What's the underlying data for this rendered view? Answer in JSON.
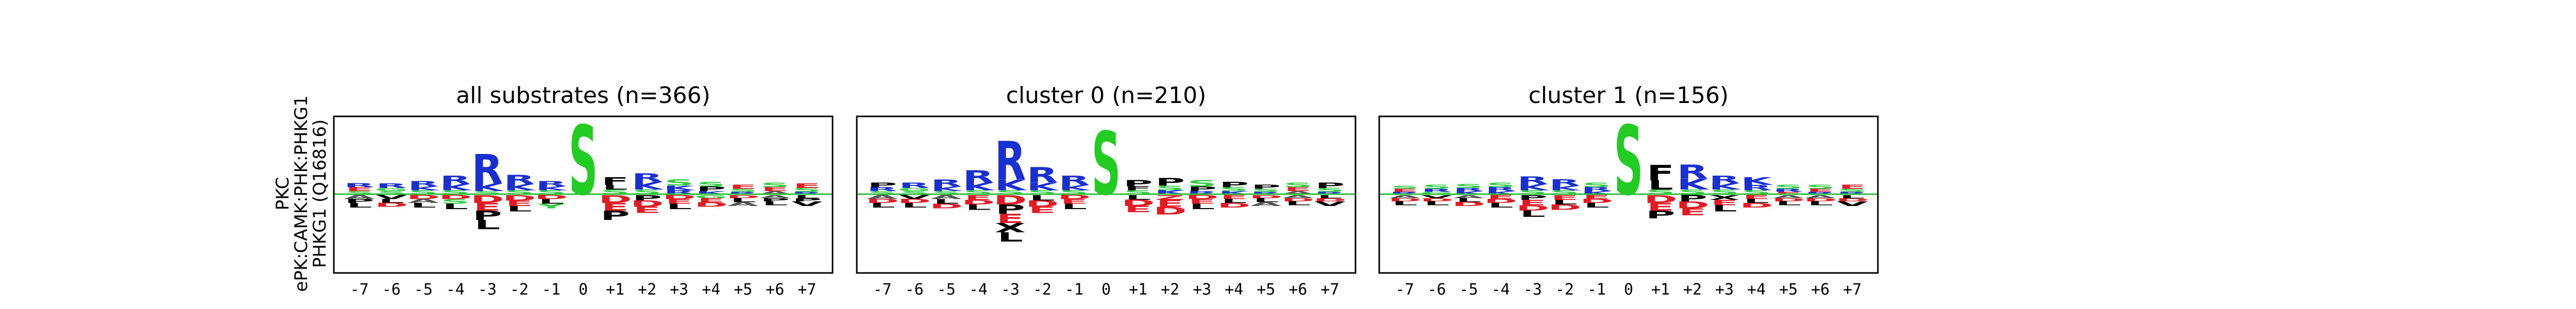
{
  "figure": {
    "row_labels": [
      "PKC",
      "ePK:CAMK:PHK:PHKG1",
      "PHKG1 (Q16816)"
    ]
  },
  "colors": {
    "basic": "#1a2fcf",
    "acidic": "#e01b24",
    "polar": "#2ecc40",
    "hydrophobic": "#000000",
    "neutral": "#9b4dca",
    "hydrophobic_alt": "#555555",
    "center": "#22cc22",
    "baseline": "#2fbf3f"
  },
  "chart_data": [
    {
      "type": "logo",
      "title": "all substrates (n=366)",
      "xlabel": "",
      "ylabel": "",
      "positions": [
        "-7",
        "-6",
        "-5",
        "-4",
        "-3",
        "-2",
        "-1",
        "0",
        "+1",
        "+2",
        "+3",
        "+4",
        "+5",
        "+6",
        "+7"
      ],
      "ylim": [
        -1.0,
        1.0
      ],
      "grid": false,
      "enriched": [
        [
          [
            "E",
            0.05
          ],
          [
            "R",
            0.05
          ],
          [
            "S",
            0.04
          ]
        ],
        [
          [
            "R",
            0.06
          ],
          [
            "S",
            0.04
          ],
          [
            "G",
            0.04
          ]
        ],
        [
          [
            "R",
            0.07
          ],
          [
            "S",
            0.05
          ],
          [
            "K",
            0.05
          ]
        ],
        [
          [
            "R",
            0.11
          ],
          [
            "K",
            0.08
          ],
          [
            "S",
            0.05
          ]
        ],
        [
          [
            "R",
            0.38
          ],
          [
            "K",
            0.1
          ],
          [
            "S",
            0.04
          ]
        ],
        [
          [
            "R",
            0.12
          ],
          [
            "K",
            0.08
          ],
          [
            "S",
            0.05
          ]
        ],
        [
          [
            "R",
            0.07
          ],
          [
            "S",
            0.05
          ],
          [
            "K",
            0.05
          ]
        ],
        [
          [
            "S",
            0.9
          ]
        ],
        [
          [
            "F",
            0.1
          ],
          [
            "S",
            0.06
          ],
          [
            "L",
            0.06
          ]
        ],
        [
          [
            "R",
            0.11
          ],
          [
            "K",
            0.1
          ],
          [
            "S",
            0.06
          ]
        ],
        [
          [
            "S",
            0.08
          ],
          [
            "K",
            0.06
          ],
          [
            "R",
            0.05
          ]
        ],
        [
          [
            "P",
            0.06
          ],
          [
            "S",
            0.06
          ],
          [
            "K",
            0.04
          ]
        ],
        [
          [
            "E",
            0.05
          ],
          [
            "S",
            0.04
          ],
          [
            "R",
            0.03
          ]
        ],
        [
          [
            "S",
            0.06
          ],
          [
            "E",
            0.05
          ],
          [
            "A",
            0.04
          ]
        ],
        [
          [
            "E",
            0.06
          ],
          [
            "S",
            0.05
          ],
          [
            "R",
            0.03
          ]
        ]
      ],
      "depleted": [
        [
          [
            "L",
            0.06
          ],
          [
            "A",
            0.05
          ],
          [
            "P",
            0.05
          ]
        ],
        [
          [
            "V",
            0.05
          ],
          [
            "L",
            0.05
          ],
          [
            "D",
            0.05
          ]
        ],
        [
          [
            "L",
            0.06
          ],
          [
            "D",
            0.05
          ],
          [
            "A",
            0.05
          ]
        ],
        [
          [
            "L",
            0.07
          ],
          [
            "S",
            0.06
          ],
          [
            "D",
            0.05
          ]
        ],
        [
          [
            "D",
            0.1
          ],
          [
            "E",
            0.1
          ],
          [
            "P",
            0.12
          ],
          [
            "L",
            0.12
          ]
        ],
        [
          [
            "D",
            0.07
          ],
          [
            "E",
            0.07
          ],
          [
            "L",
            0.07
          ]
        ],
        [
          [
            "L",
            0.06
          ],
          [
            "Y",
            0.06
          ],
          [
            "D",
            0.05
          ]
        ],
        [],
        [
          [
            "D",
            0.1
          ],
          [
            "E",
            0.1
          ],
          [
            "P",
            0.12
          ]
        ],
        [
          [
            "D",
            0.08
          ],
          [
            "E",
            0.08
          ],
          [
            "P",
            0.07
          ]
        ],
        [
          [
            "L",
            0.07
          ],
          [
            "E",
            0.06
          ],
          [
            "D",
            0.05
          ]
        ],
        [
          [
            "D",
            0.06
          ],
          [
            "E",
            0.05
          ],
          [
            "G",
            0.04
          ]
        ],
        [
          [
            "L",
            0.05
          ],
          [
            "A",
            0.05
          ],
          [
            "D",
            0.04
          ]
        ],
        [
          [
            "L",
            0.05
          ],
          [
            "A",
            0.04
          ],
          [
            "P",
            0.04
          ]
        ],
        [
          [
            "V",
            0.06
          ],
          [
            "L",
            0.04
          ],
          [
            "P",
            0.04
          ]
        ]
      ]
    },
    {
      "type": "logo",
      "title": "cluster 0 (n=210)",
      "xlabel": "",
      "ylabel": "",
      "positions": [
        "-7",
        "-6",
        "-5",
        "-4",
        "-3",
        "-2",
        "-1",
        "0",
        "+1",
        "+2",
        "+3",
        "+4",
        "+5",
        "+6",
        "+7"
      ],
      "ylim": [
        -1.0,
        1.0
      ],
      "grid": false,
      "enriched": [
        [
          [
            "P",
            0.06
          ],
          [
            "R",
            0.05
          ],
          [
            "S",
            0.04
          ]
        ],
        [
          [
            "R",
            0.07
          ],
          [
            "S",
            0.04
          ],
          [
            "G",
            0.04
          ]
        ],
        [
          [
            "R",
            0.09
          ],
          [
            "K",
            0.06
          ],
          [
            "S",
            0.04
          ]
        ],
        [
          [
            "R",
            0.16
          ],
          [
            "K",
            0.1
          ],
          [
            "S",
            0.05
          ]
        ],
        [
          [
            "R",
            0.5
          ],
          [
            "K",
            0.14
          ],
          [
            "S",
            0.05
          ]
        ],
        [
          [
            "R",
            0.2
          ],
          [
            "K",
            0.1
          ],
          [
            "S",
            0.05
          ]
        ],
        [
          [
            "R",
            0.12
          ],
          [
            "K",
            0.07
          ],
          [
            "S",
            0.05
          ]
        ],
        [
          [
            "S",
            0.82
          ]
        ],
        [
          [
            "P",
            0.08
          ],
          [
            "S",
            0.05
          ],
          [
            "F",
            0.05
          ]
        ],
        [
          [
            "P",
            0.1
          ],
          [
            "S",
            0.06
          ],
          [
            "K",
            0.05
          ]
        ],
        [
          [
            "S",
            0.08
          ],
          [
            "P",
            0.06
          ],
          [
            "R",
            0.04
          ]
        ],
        [
          [
            "P",
            0.07
          ],
          [
            "S",
            0.05
          ],
          [
            "K",
            0.04
          ]
        ],
        [
          [
            "P",
            0.05
          ],
          [
            "S",
            0.04
          ],
          [
            "R",
            0.03
          ]
        ],
        [
          [
            "S",
            0.06
          ],
          [
            "E",
            0.05
          ],
          [
            "A",
            0.04
          ]
        ],
        [
          [
            "P",
            0.07
          ],
          [
            "S",
            0.05
          ],
          [
            "R",
            0.03
          ]
        ]
      ],
      "depleted": [
        [
          [
            "L",
            0.06
          ],
          [
            "A",
            0.05
          ],
          [
            "D",
            0.05
          ]
        ],
        [
          [
            "L",
            0.06
          ],
          [
            "V",
            0.05
          ],
          [
            "D",
            0.05
          ]
        ],
        [
          [
            "L",
            0.06
          ],
          [
            "D",
            0.06
          ],
          [
            "A",
            0.05
          ]
        ],
        [
          [
            "L",
            0.07
          ],
          [
            "E",
            0.06
          ],
          [
            "D",
            0.06
          ]
        ],
        [
          [
            "D",
            0.12
          ],
          [
            "P",
            0.12
          ],
          [
            "E",
            0.12
          ],
          [
            "X",
            0.12
          ],
          [
            "L",
            0.12
          ]
        ],
        [
          [
            "D",
            0.08
          ],
          [
            "E",
            0.08
          ],
          [
            "L",
            0.07
          ]
        ],
        [
          [
            "L",
            0.07
          ],
          [
            "E",
            0.06
          ],
          [
            "D",
            0.05
          ]
        ],
        [],
        [
          [
            "D",
            0.08
          ],
          [
            "E",
            0.08
          ],
          [
            "L",
            0.06
          ]
        ],
        [
          [
            "D",
            0.1
          ],
          [
            "E",
            0.09
          ],
          [
            "Z",
            0.06
          ]
        ],
        [
          [
            "L",
            0.07
          ],
          [
            "E",
            0.06
          ],
          [
            "D",
            0.05
          ]
        ],
        [
          [
            "D",
            0.06
          ],
          [
            "E",
            0.05
          ],
          [
            "L",
            0.05
          ]
        ],
        [
          [
            "L",
            0.05
          ],
          [
            "A",
            0.05
          ],
          [
            "D",
            0.04
          ]
        ],
        [
          [
            "L",
            0.05
          ],
          [
            "A",
            0.04
          ],
          [
            "D",
            0.04
          ]
        ],
        [
          [
            "V",
            0.06
          ],
          [
            "L",
            0.04
          ],
          [
            "D",
            0.04
          ]
        ]
      ]
    },
    {
      "type": "logo",
      "title": "cluster 1 (n=156)",
      "xlabel": "",
      "ylabel": "",
      "positions": [
        "-7",
        "-6",
        "-5",
        "-4",
        "-3",
        "-2",
        "-1",
        "0",
        "+1",
        "+2",
        "+3",
        "+4",
        "+5",
        "+6",
        "+7"
      ],
      "ylim": [
        -1.0,
        1.0
      ],
      "grid": false,
      "enriched": [
        [
          [
            "E",
            0.04
          ],
          [
            "S",
            0.04
          ],
          [
            "R",
            0.03
          ]
        ],
        [
          [
            "S",
            0.05
          ],
          [
            "R",
            0.04
          ],
          [
            "G",
            0.03
          ]
        ],
        [
          [
            "S",
            0.05
          ],
          [
            "K",
            0.04
          ],
          [
            "R",
            0.04
          ]
        ],
        [
          [
            "S",
            0.06
          ],
          [
            "R",
            0.05
          ],
          [
            "K",
            0.04
          ]
        ],
        [
          [
            "R",
            0.1
          ],
          [
            "K",
            0.08
          ],
          [
            "S",
            0.05
          ]
        ],
        [
          [
            "R",
            0.08
          ],
          [
            "K",
            0.06
          ],
          [
            "S",
            0.05
          ]
        ],
        [
          [
            "S",
            0.06
          ],
          [
            "R",
            0.05
          ],
          [
            "K",
            0.04
          ]
        ],
        [
          [
            "S",
            0.9
          ]
        ],
        [
          [
            "F",
            0.2
          ],
          [
            "L",
            0.12
          ],
          [
            "S",
            0.06
          ]
        ],
        [
          [
            "R",
            0.18
          ],
          [
            "K",
            0.14
          ],
          [
            "S",
            0.06
          ]
        ],
        [
          [
            "R",
            0.1
          ],
          [
            "K",
            0.08
          ],
          [
            "S",
            0.06
          ]
        ],
        [
          [
            "K",
            0.1
          ],
          [
            "R",
            0.07
          ],
          [
            "S",
            0.05
          ]
        ],
        [
          [
            "S",
            0.05
          ],
          [
            "R",
            0.04
          ],
          [
            "E",
            0.03
          ]
        ],
        [
          [
            "S",
            0.05
          ],
          [
            "E",
            0.04
          ],
          [
            "R",
            0.03
          ]
        ],
        [
          [
            "E",
            0.05
          ],
          [
            "S",
            0.04
          ],
          [
            "R",
            0.03
          ]
        ]
      ],
      "depleted": [
        [
          [
            "L",
            0.05
          ],
          [
            "A",
            0.04
          ],
          [
            "D",
            0.04
          ]
        ],
        [
          [
            "L",
            0.05
          ],
          [
            "V",
            0.04
          ],
          [
            "D",
            0.04
          ]
        ],
        [
          [
            "L",
            0.05
          ],
          [
            "D",
            0.05
          ],
          [
            "A",
            0.04
          ]
        ],
        [
          [
            "L",
            0.06
          ],
          [
            "E",
            0.05
          ],
          [
            "D",
            0.05
          ]
        ],
        [
          [
            "L",
            0.08
          ],
          [
            "E",
            0.07
          ],
          [
            "D",
            0.07
          ],
          [
            "P",
            0.06
          ]
        ],
        [
          [
            "D",
            0.07
          ],
          [
            "E",
            0.06
          ],
          [
            "L",
            0.06
          ]
        ],
        [
          [
            "L",
            0.06
          ],
          [
            "E",
            0.05
          ],
          [
            "D",
            0.05
          ]
        ],
        [],
        [
          [
            "D",
            0.1
          ],
          [
            "E",
            0.1
          ],
          [
            "P",
            0.1
          ]
        ],
        [
          [
            "D",
            0.09
          ],
          [
            "E",
            0.09
          ],
          [
            "P",
            0.08
          ]
        ],
        [
          [
            "L",
            0.08
          ],
          [
            "E",
            0.07
          ],
          [
            "X",
            0.06
          ]
        ],
        [
          [
            "D",
            0.06
          ],
          [
            "E",
            0.05
          ],
          [
            "L",
            0.05
          ]
        ],
        [
          [
            "L",
            0.05
          ],
          [
            "A",
            0.04
          ],
          [
            "D",
            0.04
          ]
        ],
        [
          [
            "L",
            0.05
          ],
          [
            "A",
            0.04
          ],
          [
            "D",
            0.04
          ]
        ],
        [
          [
            "V",
            0.06
          ],
          [
            "L",
            0.04
          ],
          [
            "D",
            0.04
          ]
        ]
      ]
    }
  ]
}
